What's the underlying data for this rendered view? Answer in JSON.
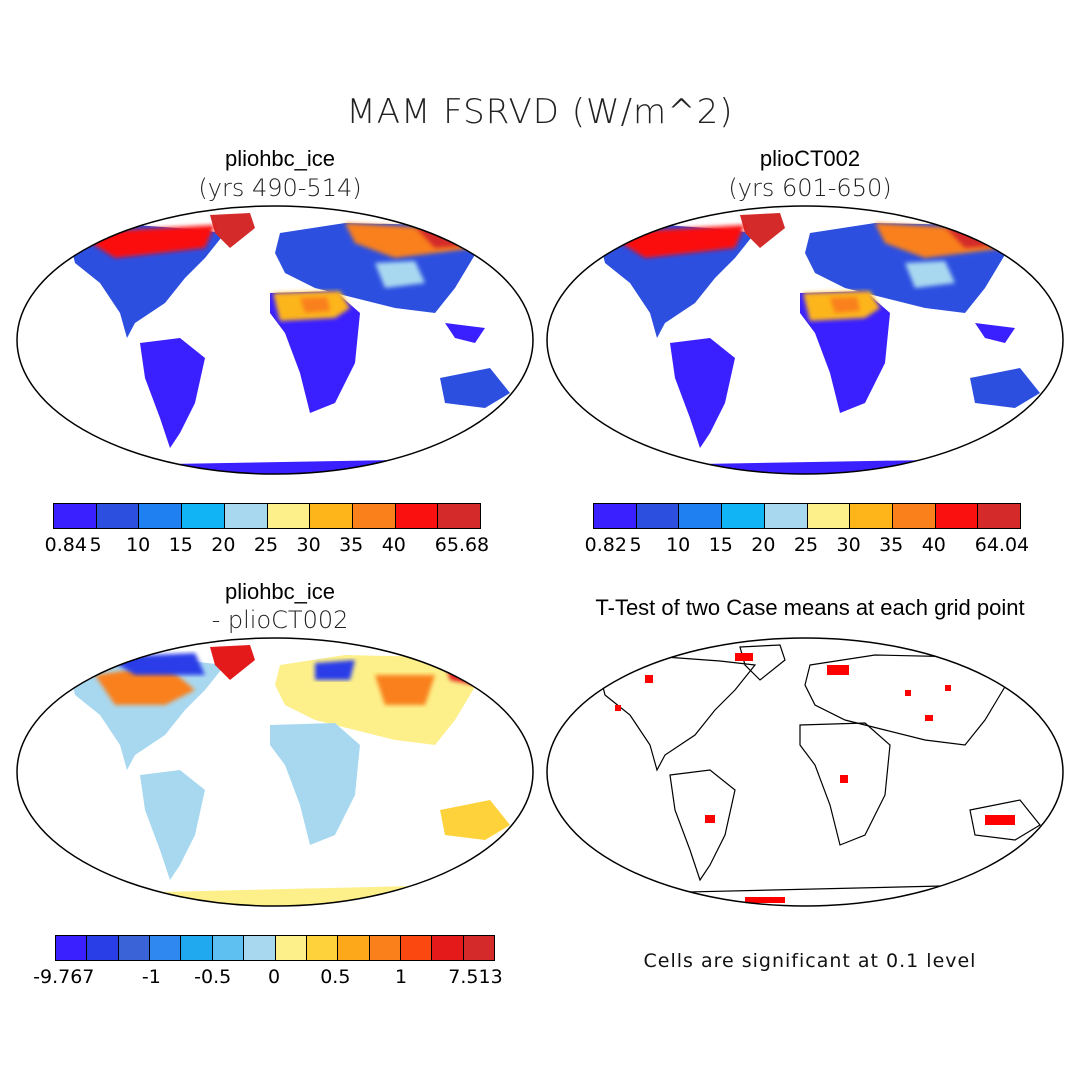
{
  "title": "MAM FSRVD (W/m^2)",
  "panels": {
    "top_left": {
      "title": "pliohbc_ice",
      "subtitle": "(yrs 490-514)"
    },
    "top_right": {
      "title": "plioCT002",
      "subtitle": "(yrs 601-650)"
    },
    "bottom_left": {
      "title": "pliohbc_ice",
      "subtitle": "- plioCT002"
    },
    "bottom_right": {
      "title": "T-Test of two Case means at each grid point",
      "subtitle": ""
    }
  },
  "colorbars": {
    "top_left": {
      "colors": [
        "#3a1fff",
        "#2d4fe0",
        "#1f80f2",
        "#11b4f5",
        "#a8d8f0",
        "#fdf08a",
        "#fdb51a",
        "#f9801a",
        "#fb1010",
        "#d42a2a"
      ],
      "labels": [
        "0.84",
        "5",
        "10",
        "15",
        "20",
        "25",
        "30",
        "35",
        "40",
        "65.68"
      ]
    },
    "top_right": {
      "colors": [
        "#3a1fff",
        "#2d4fe0",
        "#1f80f2",
        "#11b4f5",
        "#a8d8f0",
        "#fdf08a",
        "#fdb51a",
        "#f9801a",
        "#fb1010",
        "#d42a2a"
      ],
      "labels": [
        "0.82",
        "5",
        "10",
        "15",
        "20",
        "25",
        "30",
        "35",
        "40",
        "64.04"
      ]
    },
    "bottom_left": {
      "colors": [
        "#3a1fff",
        "#2a3ee8",
        "#3a63d8",
        "#2f88f0",
        "#21a9f0",
        "#5ec0f0",
        "#a8d8f0",
        "#fdf08a",
        "#fdd23a",
        "#fda81a",
        "#f9801a",
        "#fb4810",
        "#e41a1a",
        "#d42a2a"
      ],
      "labels": [
        "-9.767",
        "-1",
        "-0.5",
        "0",
        "0.5",
        "1",
        "7.513"
      ]
    }
  },
  "note": "Cells are significant at 0.1 level",
  "chart_data": [
    {
      "type": "heatmap",
      "title": "pliohbc_ice",
      "subtitle": "(yrs 490-514)",
      "variable": "MAM FSRVD (W/m^2)",
      "colorbar_levels": [
        0.84,
        5,
        10,
        15,
        20,
        25,
        30,
        35,
        40,
        65.68
      ]
    },
    {
      "type": "heatmap",
      "title": "plioCT002",
      "subtitle": "(yrs 601-650)",
      "variable": "MAM FSRVD (W/m^2)",
      "colorbar_levels": [
        0.82,
        5,
        10,
        15,
        20,
        25,
        30,
        35,
        40,
        64.04
      ]
    },
    {
      "type": "heatmap",
      "title": "pliohbc_ice - plioCT002",
      "variable": "MAM FSRVD (W/m^2)",
      "colorbar_levels": [
        -9.767,
        -1,
        -0.5,
        0,
        0.5,
        1,
        7.513
      ]
    },
    {
      "type": "heatmap",
      "title": "T-Test of two Case means at each grid point",
      "note": "Cells are significant at 0.1 level"
    }
  ]
}
